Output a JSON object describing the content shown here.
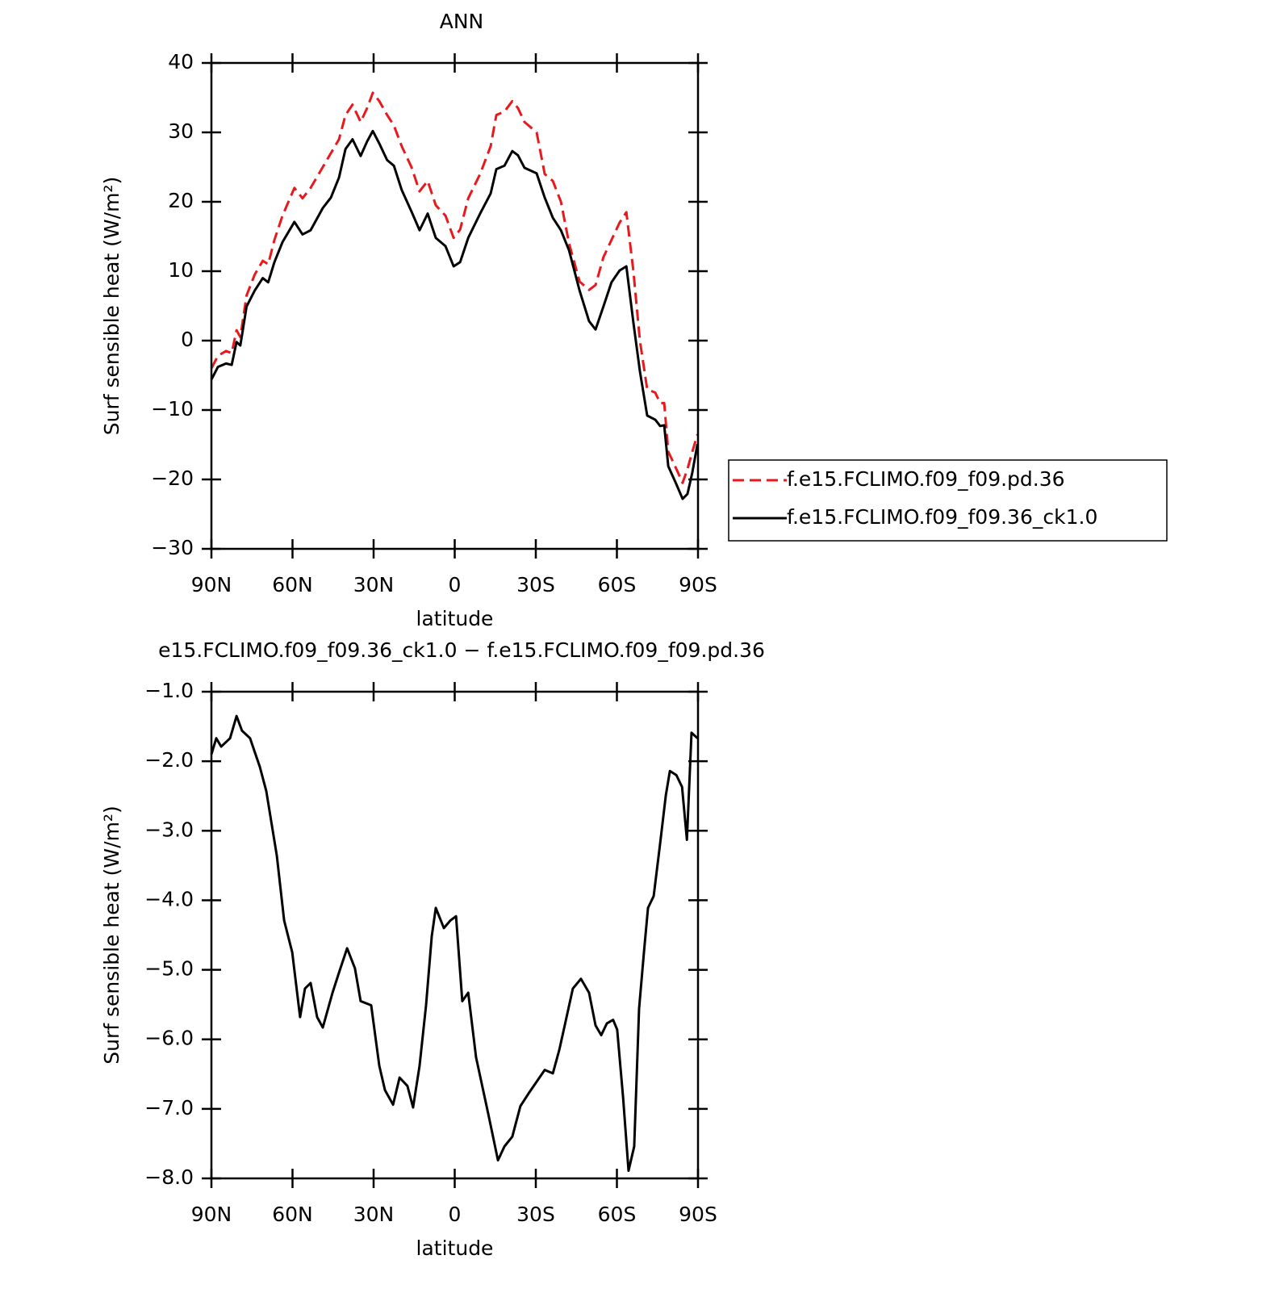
{
  "chart_data": [
    {
      "type": "line",
      "title": "ANN",
      "x_label": "latitude",
      "y_label": "Surf sensible heat (W/m²)",
      "x": [
        90,
        87.6,
        84.6,
        82.5,
        80.7,
        79.3,
        77,
        74,
        71,
        69,
        66.7,
        63.7,
        59.3,
        56.3,
        53.3,
        48.8,
        45.8,
        42.8,
        40.4,
        37.8,
        34.8,
        32.4,
        30.3,
        27.9,
        25,
        22.5,
        19.6,
        16,
        13,
        10,
        7,
        3.4,
        0.4,
        -2,
        -5,
        -9.4,
        -13.3,
        -15.4,
        -18.4,
        -21.3,
        -23.4,
        -25.8,
        -30.3,
        -33.3,
        -36.3,
        -39.3,
        -42.3,
        -46.2,
        -49.7,
        -52.1,
        -55,
        -58,
        -61,
        -63.5,
        -66.1,
        -68.5,
        -71.2,
        -74.2,
        -76,
        -77.5,
        -79,
        -82,
        -84.3,
        -86.1,
        -87.9,
        -89.8
      ],
      "series": [
        {
          "name": "f.e15.FCLIMO.f09_f09.pd.36",
          "color": "#e8191d",
          "style": "dashed",
          "values": [
            -4,
            -2.2,
            -1.5,
            -1.8,
            1.5,
            0.5,
            6.5,
            9.5,
            11.5,
            11,
            14.5,
            18,
            22,
            20.5,
            22,
            25,
            27,
            29,
            32.5,
            34,
            31.5,
            33.5,
            35.7,
            34.5,
            32.5,
            31,
            28,
            25,
            21.5,
            23,
            19.5,
            18,
            14.8,
            16,
            20.5,
            24,
            28,
            32.5,
            33,
            34.5,
            33.5,
            31.5,
            30,
            24,
            23,
            20,
            14,
            8.5,
            7.3,
            8,
            12,
            14.5,
            17,
            18.5,
            10,
            0,
            -7,
            -7.5,
            -9,
            -9,
            -16,
            -18.5,
            -20.5,
            -18.5,
            -16,
            -13.5
          ]
        },
        {
          "name": "f.e15.FCLIMO.f09_f09.36_ck1.0",
          "color": "#000000",
          "style": "solid",
          "values": [
            -5.6,
            -3.8,
            -3.3,
            -3.5,
            -0.2,
            -0.7,
            4.9,
            7.2,
            9,
            8.4,
            11.3,
            14.2,
            17.1,
            15.3,
            15.9,
            19.1,
            20.6,
            23.5,
            27.6,
            29,
            26.6,
            28.7,
            30.2,
            28.4,
            26,
            25.2,
            21.7,
            18.6,
            15.9,
            18.3,
            14.8,
            13.6,
            10.7,
            11.3,
            14.8,
            18.3,
            21.2,
            24.7,
            25.2,
            27.3,
            26.7,
            24.9,
            24.1,
            20.6,
            17.7,
            15.9,
            13,
            7.2,
            2.8,
            1.6,
            4.9,
            8.4,
            10.1,
            10.7,
            2.6,
            -4.4,
            -10.8,
            -11.4,
            -12.3,
            -12.2,
            -18.1,
            -20.7,
            -22.8,
            -22.1,
            -19,
            -14.9
          ]
        }
      ],
      "xlim": [
        90,
        -90
      ],
      "xticks": [
        {
          "value": 90,
          "label": "90N"
        },
        {
          "value": 60,
          "label": "60N"
        },
        {
          "value": 30,
          "label": "30N"
        },
        0,
        {
          "value": -30,
          "label": "30S"
        },
        {
          "value": -60,
          "label": "60S"
        },
        {
          "value": -90,
          "label": "90S"
        }
      ],
      "ylim": [
        -30,
        40
      ],
      "yticks": [
        {
          "value": -30,
          "label": "−30"
        },
        {
          "value": -20,
          "label": "−20"
        },
        {
          "value": -10,
          "label": "−10"
        },
        0,
        10,
        20,
        30,
        40
      ],
      "legend": "right"
    },
    {
      "type": "line",
      "title": "e15.FCLIMO.f09_f09.36_ck1.0 − f.e15.FCLIMO.f09_f09.pd.36",
      "x_label": "latitude",
      "y_label": "Surf sensible heat (W/m²)",
      "x": [
        90,
        88.2,
        86.4,
        83.1,
        80.7,
        78.7,
        75.7,
        72.1,
        69.7,
        65.8,
        63.1,
        60.1,
        57.2,
        55.4,
        53.3,
        50.9,
        48.8,
        45.2,
        42.8,
        39.8,
        36.9,
        34.8,
        30.9,
        27.9,
        25.8,
        22.8,
        20.4,
        17.5,
        15.4,
        13,
        10.6,
        8.5,
        7,
        4,
        1.6,
        -0.5,
        -2.8,
        -5,
        -7.9,
        -12.4,
        -16,
        -18.4,
        -21.3,
        -24.3,
        -27.3,
        -30.3,
        -33.3,
        -36.3,
        -38.7,
        -40.7,
        -43.7,
        -46.7,
        -49.7,
        -52.1,
        -54.2,
        -56.3,
        -58.6,
        -60.1,
        -62.3,
        -64.3,
        -66.4,
        -68.2,
        -70,
        -71.5,
        -73.6,
        -76,
        -78.1,
        -79.6,
        -82,
        -84.1,
        -85.9,
        -87.6,
        -89.8
      ],
      "series": [
        {
          "color": "#000000",
          "style": "solid",
          "values": [
            -1.9,
            -1.67,
            -1.79,
            -1.67,
            -1.35,
            -1.56,
            -1.67,
            -2.08,
            -2.43,
            -3.36,
            -4.29,
            -4.75,
            -5.68,
            -5.27,
            -5.19,
            -5.68,
            -5.83,
            -5.33,
            -5.04,
            -4.69,
            -4.98,
            -5.45,
            -5.51,
            -6.38,
            -6.73,
            -6.94,
            -6.55,
            -6.67,
            -6.98,
            -6.38,
            -5.51,
            -4.52,
            -4.11,
            -4.4,
            -4.29,
            -4.23,
            -5.45,
            -5.33,
            -6.26,
            -7.07,
            -7.74,
            -7.54,
            -7.4,
            -6.96,
            -6.78,
            -6.61,
            -6.44,
            -6.49,
            -6.15,
            -5.8,
            -5.27,
            -5.13,
            -5.33,
            -5.8,
            -5.94,
            -5.77,
            -5.72,
            -5.86,
            -6.84,
            -7.89,
            -7.54,
            -5.56,
            -4.75,
            -4.11,
            -3.94,
            -3.18,
            -2.49,
            -2.14,
            -2.2,
            -2.37,
            -3.13,
            -1.59,
            -1.67
          ]
        }
      ],
      "xlim": [
        90,
        -90
      ],
      "xticks": [
        {
          "value": 90,
          "label": "90N"
        },
        {
          "value": 60,
          "label": "60N"
        },
        {
          "value": 30,
          "label": "30N"
        },
        0,
        {
          "value": -30,
          "label": "30S"
        },
        {
          "value": -60,
          "label": "60S"
        },
        {
          "value": -90,
          "label": "90S"
        }
      ],
      "ylim": [
        -8,
        -1
      ],
      "yticks": [
        {
          "value": -8,
          "label": "−8.0"
        },
        {
          "value": -7,
          "label": "−7.0"
        },
        {
          "value": -6,
          "label": "−6.0"
        },
        {
          "value": -5,
          "label": "−5.0"
        },
        {
          "value": -4,
          "label": "−4.0"
        },
        {
          "value": -3,
          "label": "−3.0"
        },
        {
          "value": -2,
          "label": "−2.0"
        },
        {
          "value": -1,
          "label": "−1.0"
        }
      ]
    }
  ]
}
